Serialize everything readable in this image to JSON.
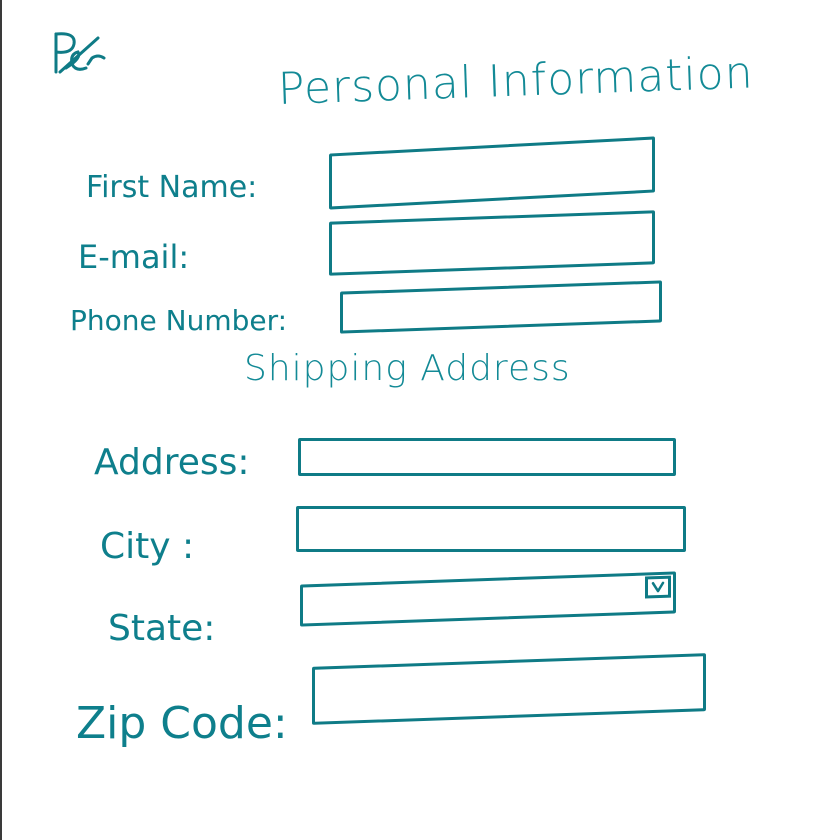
{
  "logo": {
    "icon": "handwritten-logo-icon",
    "text": "Per"
  },
  "personal": {
    "title": "Personal Information",
    "first_name": {
      "label": "First Name:",
      "value": ""
    },
    "email": {
      "label": "E-mail:",
      "value": ""
    },
    "phone": {
      "label": "Phone Number:",
      "value": ""
    }
  },
  "shipping": {
    "title": "Shipping Address",
    "address": {
      "label": "Address:",
      "value": ""
    },
    "city": {
      "label": "City :",
      "value": ""
    },
    "state": {
      "label": "State:",
      "value": "",
      "dropdown_icon": "chevron-down-icon"
    },
    "zip": {
      "label": "Zip Code:",
      "value": ""
    }
  },
  "colors": {
    "ink": "#0e7f8c",
    "border": "#0f7b86",
    "background": "#ffffff"
  }
}
